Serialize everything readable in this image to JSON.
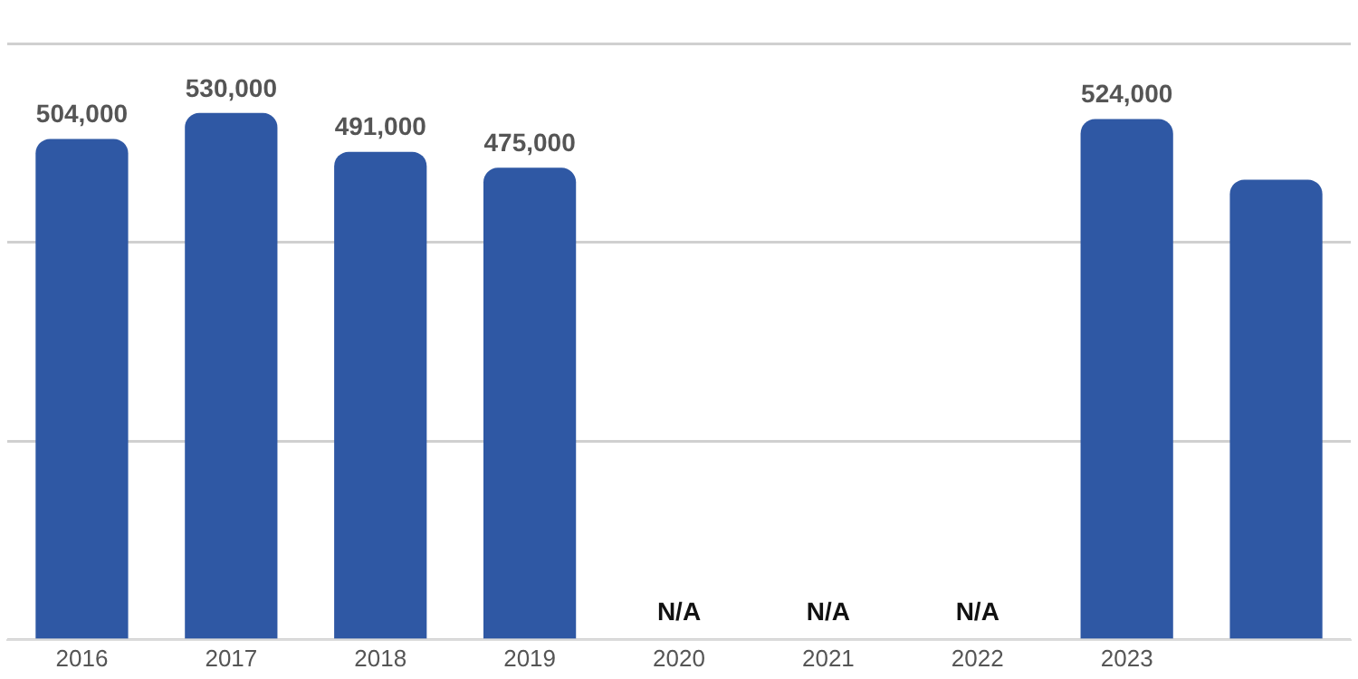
{
  "chart_data": {
    "type": "bar",
    "categories": [
      "2016",
      "2017",
      "2018",
      "2019",
      "2020",
      "2021",
      "2022",
      "2023",
      null
    ],
    "values": [
      504000,
      530000,
      491000,
      475000,
      null,
      null,
      null,
      524000,
      463000
    ],
    "value_labels": [
      "504,000",
      "530,000",
      "491,000",
      "475,000",
      "N/A",
      "N/A",
      "N/A",
      "524,000",
      null
    ],
    "color": "#2f58a4",
    "ylim": [
      0,
      600000
    ],
    "yticks": [
      {
        "value": 0,
        "label": null
      },
      {
        "value": 200000,
        "label": null
      },
      {
        "value": 400000,
        "label": null
      },
      {
        "value": 600000,
        "label": null
      }
    ],
    "grid": "y",
    "tick_labels": "x",
    "legend": false
  }
}
